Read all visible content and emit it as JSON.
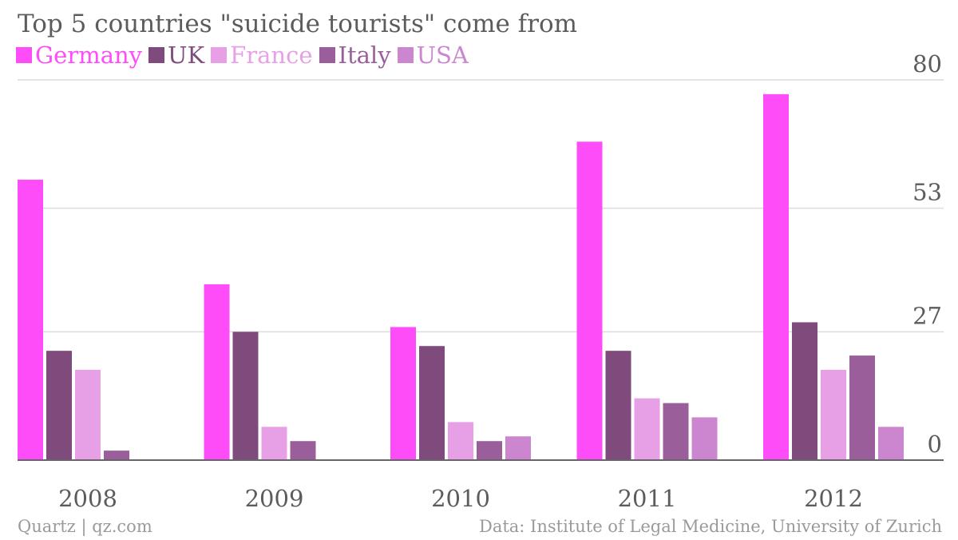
{
  "chart_data": {
    "type": "bar",
    "title": "Top 5 countries \"suicide tourists\" come from",
    "categories": [
      "2008",
      "2009",
      "2010",
      "2011",
      "2012"
    ],
    "series": [
      {
        "name": "Germany",
        "color": "#fd4cf8",
        "values": [
          59,
          37,
          28,
          67,
          77
        ]
      },
      {
        "name": "UK",
        "color": "#7f4b7c",
        "values": [
          23,
          27,
          24,
          23,
          29
        ]
      },
      {
        "name": "France",
        "color": "#e7a0e5",
        "values": [
          19,
          7,
          8,
          13,
          19
        ]
      },
      {
        "name": "Italy",
        "color": "#9a5e9b",
        "values": [
          2,
          4,
          4,
          12,
          22
        ]
      },
      {
        "name": "USA",
        "color": "#cc86cf",
        "values": [
          0,
          0,
          5,
          9,
          7
        ]
      }
    ],
    "y_ticks": [
      "80",
      "53",
      "27",
      "0"
    ],
    "ylim": [
      0,
      80
    ],
    "xlabel": "",
    "ylabel": "",
    "grid": true,
    "legend_position": "top-left"
  },
  "footer": {
    "source_left": "Quartz | qz.com",
    "source_right": "Data: Institute of Legal Medicine, University of Zurich"
  }
}
